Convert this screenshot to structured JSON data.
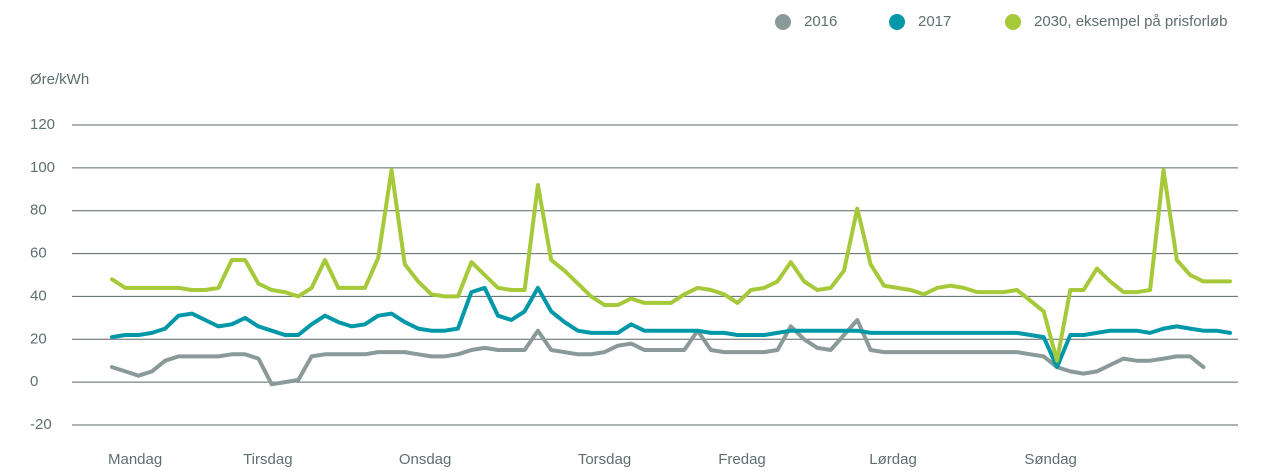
{
  "chart_data": {
    "type": "line",
    "y_label": "Øre/kWh",
    "legend": "top-right",
    "grid": true,
    "xlim": [
      0,
      168
    ],
    "xticks": [
      {
        "value": 0,
        "label": "Mandag"
      },
      {
        "value": 20.3,
        "label": "Tirsdag"
      },
      {
        "value": 43.7,
        "label": "Onsdag"
      },
      {
        "value": 70.6,
        "label": "Torsdag"
      },
      {
        "value": 91.7,
        "label": "Fredag"
      },
      {
        "value": 114.4,
        "label": "Lørdag"
      },
      {
        "value": 137.7,
        "label": "Søndag"
      }
    ],
    "ylim": [
      -20,
      120
    ],
    "yticks": [
      -20,
      0,
      20,
      40,
      60,
      80,
      100,
      120
    ],
    "x": [
      0,
      2,
      4,
      6,
      8,
      10,
      12,
      14,
      16,
      18,
      20,
      22,
      24,
      26,
      28,
      30,
      32,
      34,
      36,
      38,
      40,
      42,
      44,
      46,
      48,
      50,
      52,
      54,
      56,
      58,
      60,
      62,
      64,
      66,
      68,
      70,
      72,
      74,
      76,
      78,
      80,
      82,
      84,
      86,
      88,
      90,
      92,
      94,
      96,
      98,
      100,
      102,
      104,
      106,
      108,
      110,
      112,
      114,
      116,
      118,
      120,
      122,
      124,
      126,
      128,
      130,
      132,
      134,
      136,
      138,
      140,
      142,
      144,
      146,
      148,
      150,
      152,
      154,
      156,
      158,
      160,
      162,
      164,
      166,
      168
    ],
    "series": [
      {
        "name": "2016",
        "color": "#8a9a98",
        "values": [
          7,
          5,
          3,
          5,
          10,
          12,
          12,
          12,
          12,
          13,
          13,
          11,
          -1,
          0,
          1,
          12,
          13,
          13,
          13,
          13,
          14,
          14,
          14,
          13,
          12,
          12,
          13,
          15,
          16,
          15,
          15,
          15,
          24,
          15,
          14,
          13,
          13,
          14,
          17,
          18,
          15,
          15,
          15,
          15,
          24,
          15,
          14,
          14,
          14,
          14,
          15,
          26,
          20,
          16,
          15,
          22,
          29,
          15,
          14,
          14,
          14,
          14,
          14,
          14,
          14,
          14,
          14,
          14,
          14,
          13,
          12,
          7,
          5,
          4,
          5,
          8,
          11,
          10,
          10,
          11,
          12,
          12,
          7,
          null,
          null
        ]
      },
      {
        "name": "2017",
        "color": "#0098a8",
        "values": [
          21,
          22,
          22,
          23,
          25,
          31,
          32,
          29,
          26,
          27,
          30,
          26,
          24,
          22,
          22,
          27,
          31,
          28,
          26,
          27,
          31,
          32,
          28,
          25,
          24,
          24,
          25,
          42,
          44,
          31,
          29,
          33,
          44,
          33,
          28,
          24,
          23,
          23,
          23,
          27,
          24,
          24,
          24,
          24,
          24,
          23,
          23,
          22,
          22,
          22,
          23,
          24,
          24,
          24,
          24,
          24,
          24,
          23,
          23,
          23,
          23,
          23,
          23,
          23,
          23,
          23,
          23,
          23,
          23,
          22,
          21,
          7,
          22,
          22,
          23,
          24,
          24,
          24,
          23,
          25,
          26,
          25,
          24,
          24,
          23
        ]
      },
      {
        "name": "2030, eksempel på prisforløb",
        "color": "#a6c93a",
        "values": [
          48,
          44,
          44,
          44,
          44,
          44,
          43,
          43,
          44,
          57,
          57,
          46,
          43,
          42,
          40,
          44,
          57,
          44,
          44,
          44,
          58,
          99,
          55,
          47,
          41,
          40,
          40,
          56,
          50,
          44,
          43,
          43,
          92,
          57,
          52,
          46,
          40,
          36,
          36,
          39,
          37,
          37,
          37,
          41,
          44,
          43,
          41,
          37,
          43,
          44,
          47,
          56,
          47,
          43,
          44,
          52,
          81,
          55,
          45,
          44,
          43,
          41,
          44,
          45,
          44,
          42,
          42,
          42,
          43,
          38,
          33,
          10,
          43,
          43,
          53,
          47,
          42,
          42,
          43,
          99,
          57,
          50,
          47,
          47,
          47
        ]
      }
    ]
  }
}
